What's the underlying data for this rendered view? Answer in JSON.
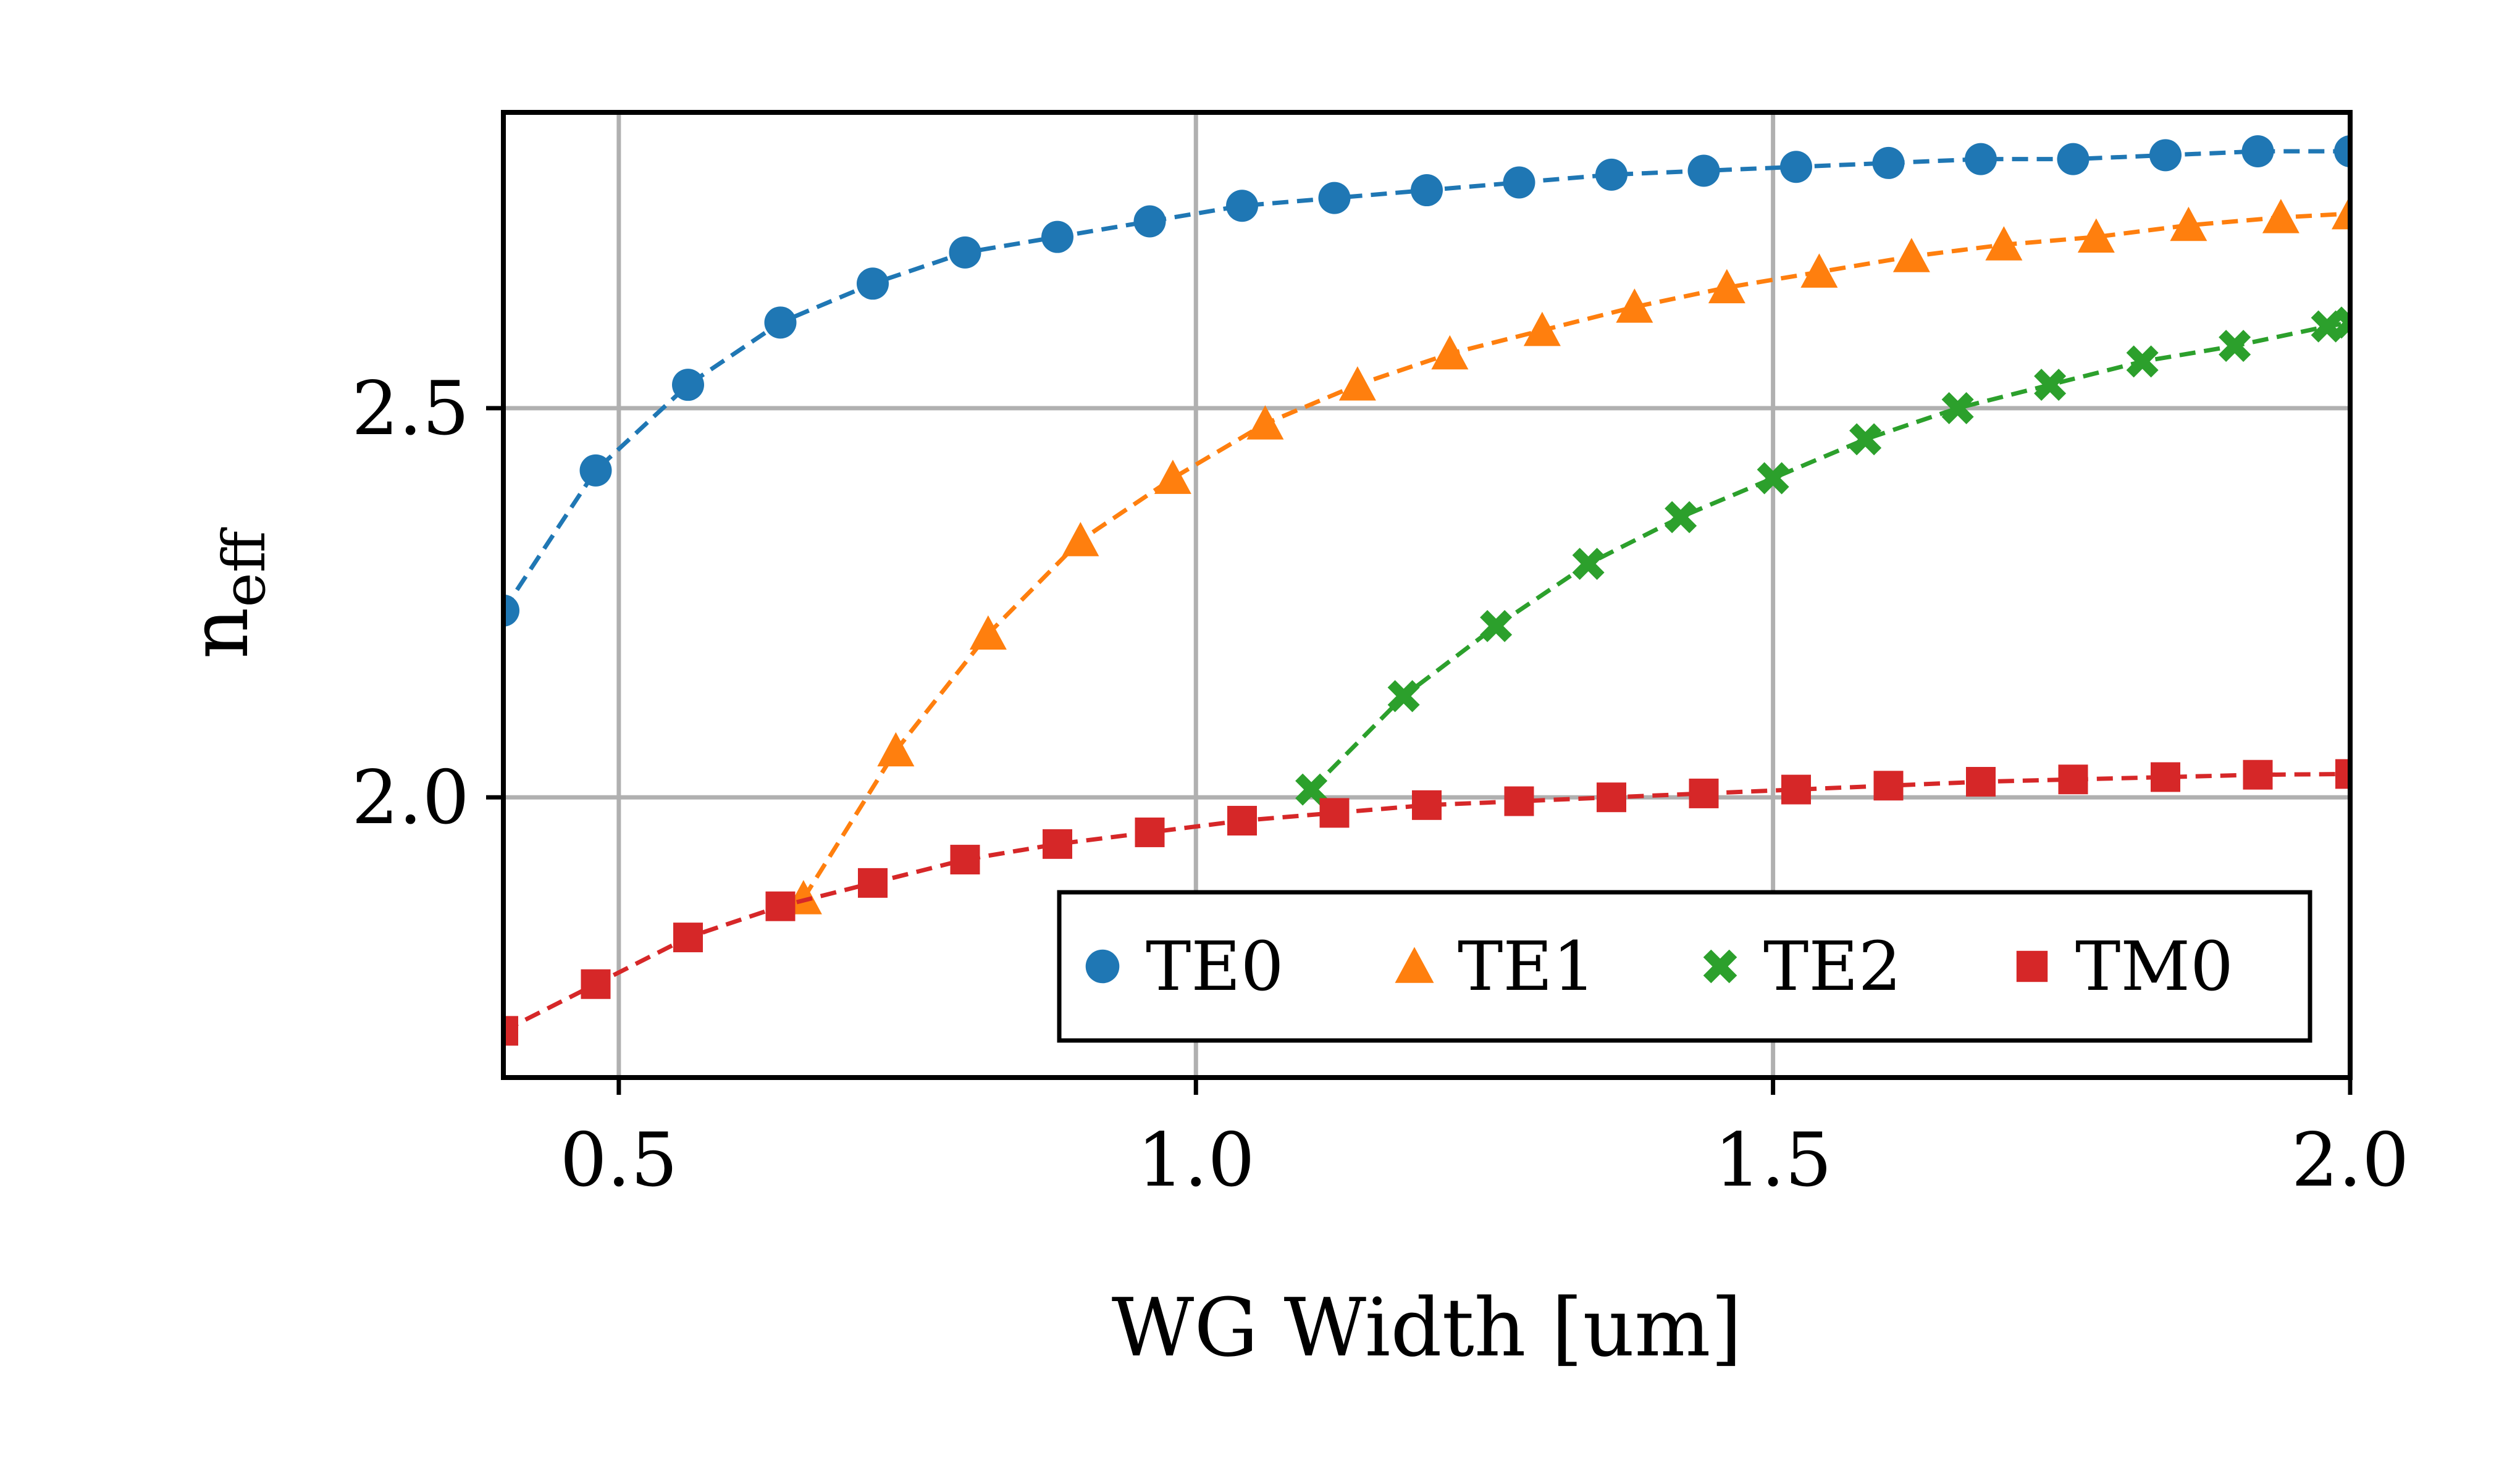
{
  "chart_data": {
    "type": "line",
    "xlabel": "WG Width [um]",
    "ylabel_main": "n",
    "ylabel_sub": "eff",
    "xlim": [
      0.4,
      2.0
    ],
    "ylim": [
      1.64,
      2.88
    ],
    "xticks": [
      0.5,
      1.0,
      1.5,
      2.0
    ],
    "xtick_labels": [
      "0.5",
      "1.0",
      "1.5",
      "2.0"
    ],
    "yticks": [
      2.0,
      2.5
    ],
    "ytick_labels": [
      "2.0",
      "2.5"
    ],
    "grid": true,
    "legend_placement": "lower-right",
    "colors": {
      "TE0": "#1f77b4",
      "TE1": "#ff7f0e",
      "TE2": "#2ca02c",
      "TM0": "#d62728",
      "grid": "#b0b0b0",
      "axis": "#000000"
    },
    "series": [
      {
        "name": "TE0",
        "marker": "circle",
        "x": [
          0.4,
          0.48,
          0.56,
          0.64,
          0.72,
          0.8,
          0.88,
          0.96,
          1.04,
          1.12,
          1.2,
          1.28,
          1.36,
          1.44,
          1.52,
          1.6,
          1.68,
          1.76,
          1.84,
          1.92,
          2.0
        ],
        "y": [
          2.24,
          2.42,
          2.53,
          2.61,
          2.66,
          2.7,
          2.72,
          2.74,
          2.76,
          2.77,
          2.78,
          2.79,
          2.8,
          2.805,
          2.81,
          2.815,
          2.82,
          2.82,
          2.825,
          2.83,
          2.83
        ]
      },
      {
        "name": "TE1",
        "marker": "triangle",
        "x": [
          0.66,
          0.74,
          0.82,
          0.9,
          0.98,
          1.06,
          1.14,
          1.22,
          1.3,
          1.38,
          1.46,
          1.54,
          1.62,
          1.7,
          1.78,
          1.86,
          1.94,
          2.0
        ],
        "y": [
          1.87,
          2.06,
          2.21,
          2.33,
          2.41,
          2.48,
          2.53,
          2.57,
          2.6,
          2.63,
          2.655,
          2.675,
          2.695,
          2.71,
          2.72,
          2.735,
          2.745,
          2.75
        ]
      },
      {
        "name": "TE2",
        "marker": "x",
        "x": [
          1.1,
          1.18,
          1.26,
          1.34,
          1.42,
          1.5,
          1.58,
          1.66,
          1.74,
          1.82,
          1.9,
          1.98,
          2.0
        ],
        "y": [
          2.01,
          2.13,
          2.22,
          2.3,
          2.36,
          2.41,
          2.46,
          2.5,
          2.53,
          2.56,
          2.58,
          2.605,
          2.61
        ]
      },
      {
        "name": "TM0",
        "marker": "square",
        "x": [
          0.4,
          0.48,
          0.56,
          0.64,
          0.72,
          0.8,
          0.88,
          0.96,
          1.04,
          1.12,
          1.2,
          1.28,
          1.36,
          1.44,
          1.52,
          1.6,
          1.68,
          1.76,
          1.84,
          1.92,
          2.0
        ],
        "y": [
          1.7,
          1.76,
          1.82,
          1.86,
          1.89,
          1.92,
          1.94,
          1.955,
          1.97,
          1.98,
          1.99,
          1.995,
          2.0,
          2.005,
          2.01,
          2.015,
          2.02,
          2.023,
          2.026,
          2.029,
          2.03
        ]
      }
    ]
  }
}
